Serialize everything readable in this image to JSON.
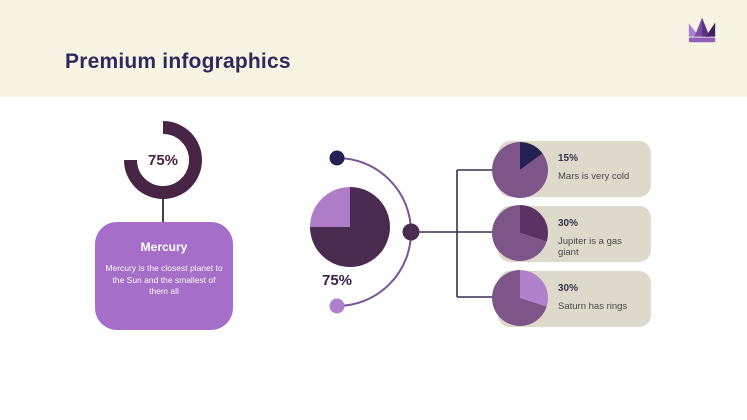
{
  "header": {
    "title": "Premium infographics"
  },
  "logo": {
    "icon": "crown-icon",
    "colors": {
      "left": "#A97ED1",
      "mid": "#7C4BA8",
      "mid_shade": "#5B3480",
      "right": "#3E2562",
      "base": "#8F5FBB"
    }
  },
  "colors": {
    "header_band": "#F8F4E4",
    "body_bg": "#FFFFFF",
    "title_text": "#2E295C",
    "donut_ring": "#482445",
    "mercury_card_bg": "#A56EC8",
    "pie_dark": "#4B2C51",
    "pie_light": "#AF7CC8",
    "arc_stroke": "#7A549B",
    "line_stroke": "#3A2D52",
    "stem_stroke": "#4B3A4C",
    "dot_top": "#242253",
    "dot_bottom": "#B07FD0",
    "dot_node": "#4B2C51",
    "info_card_bg": "#DEDACB",
    "pie_body": "#7E5589",
    "mars_slice": "#242253",
    "jupiter_slice": "#5A3263",
    "saturn_slice": "#B183CC"
  },
  "left_infographic": {
    "donut_label": "75%",
    "card": {
      "title": "Mercury",
      "description": "Mercury is the closest planet to the Sun and the smallest of them all"
    }
  },
  "center_infographic": {
    "pie_label": "75%"
  },
  "right_items": [
    {
      "pct": "15%",
      "text": "Mars is very cold"
    },
    {
      "pct": "30%",
      "text": "Jupiter is a gas giant"
    },
    {
      "pct": "30%",
      "text": "Saturn has rings"
    }
  ],
  "charts": {
    "donut75": {
      "type": "donut",
      "percent": 75,
      "color": "#482445"
    },
    "pie75": {
      "type": "pie",
      "slices": [
        {
          "frac": 0.75,
          "color": "#4B2C51"
        },
        {
          "frac": 0.25,
          "color": "#AF7CC8"
        }
      ]
    },
    "mars": {
      "type": "pie",
      "slices": [
        {
          "frac": 0.15,
          "color": "#242253"
        },
        {
          "frac": 0.85,
          "color": "#7E5589"
        }
      ]
    },
    "jupiter": {
      "type": "pie",
      "slices": [
        {
          "frac": 0.3,
          "color": "#5A3263"
        },
        {
          "frac": 0.7,
          "color": "#7E5589"
        }
      ]
    },
    "saturn": {
      "type": "pie",
      "slices": [
        {
          "frac": 0.3,
          "color": "#B183CC"
        },
        {
          "frac": 0.7,
          "color": "#7E5589"
        }
      ]
    }
  },
  "chart_data": [
    {
      "type": "pie",
      "style": "donut",
      "title": "Mercury",
      "values": [
        75,
        25
      ],
      "labels": [
        "filled",
        "empty"
      ],
      "data_label": "75%"
    },
    {
      "type": "pie",
      "title": "center pie",
      "values": [
        75,
        25
      ],
      "labels": [
        "dark",
        "light"
      ],
      "data_label": "75%"
    },
    {
      "type": "pie",
      "title": "Mars is very cold",
      "values": [
        15,
        85
      ],
      "labels": [
        "slice",
        "body"
      ],
      "data_label": "15%"
    },
    {
      "type": "pie",
      "title": "Jupiter is a gas giant",
      "values": [
        30,
        70
      ],
      "labels": [
        "slice",
        "body"
      ],
      "data_label": "30%"
    },
    {
      "type": "pie",
      "title": "Saturn has rings",
      "values": [
        30,
        70
      ],
      "labels": [
        "slice",
        "body"
      ],
      "data_label": "30%"
    }
  ]
}
